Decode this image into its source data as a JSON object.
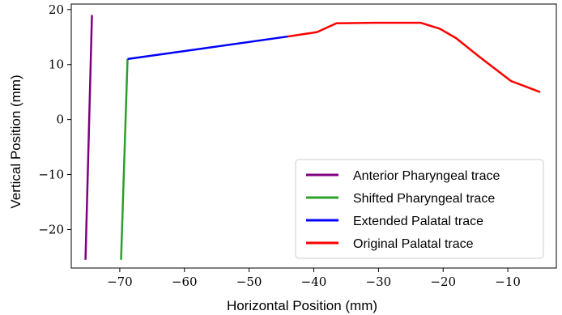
{
  "chart_data": {
    "type": "line",
    "title": "",
    "xlabel": "Horizontal Position (mm)",
    "ylabel": "Vertical Position (mm)",
    "xlim": [
      -77.5,
      -2.5
    ],
    "ylim": [
      -27,
      21
    ],
    "xticks": [
      -70,
      -60,
      -50,
      -40,
      -30,
      -20,
      -10
    ],
    "yticks": [
      20,
      10,
      0,
      -10,
      -20
    ],
    "xtick_labels": [
      "−70",
      "−60",
      "−50",
      "−40",
      "−30",
      "−20",
      "−10"
    ],
    "ytick_labels": [
      "20",
      "10",
      "0",
      "−10",
      "−20"
    ],
    "grid": false,
    "legend_position": "lower-right",
    "series": [
      {
        "name": "Anterior Pharyngeal trace",
        "color": "#800080",
        "x": [
          -75.3,
          -74.3
        ],
        "y": [
          -25.5,
          19.0
        ]
      },
      {
        "name": "Shifted Pharyngeal trace",
        "color": "#2ca02c",
        "x": [
          -69.8,
          -68.8
        ],
        "y": [
          -25.5,
          11.0
        ]
      },
      {
        "name": "Extended Palatal trace",
        "color": "#0000ff",
        "x": [
          -68.8,
          -44.0
        ],
        "y": [
          11.0,
          15.1
        ]
      },
      {
        "name": "Original Palatal trace",
        "color": "#ff0000",
        "x": [
          -44.0,
          -39.5,
          -36.5,
          -30.5,
          -23.5,
          -20.5,
          -18.0,
          -14.5,
          -9.5,
          -5.0
        ],
        "y": [
          15.1,
          15.9,
          17.5,
          17.6,
          17.6,
          16.5,
          14.8,
          11.5,
          7.0,
          5.0
        ]
      }
    ]
  }
}
